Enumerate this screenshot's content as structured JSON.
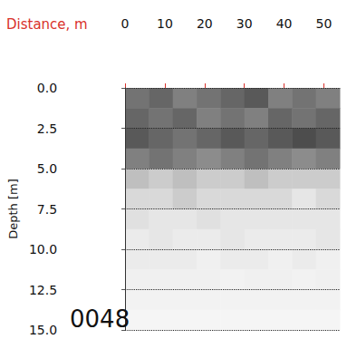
{
  "chart_data": {
    "type": "heatmap",
    "x_label": "Distance, m",
    "y_label": "Depth [m]",
    "annotation": "0048",
    "xlim": [
      0,
      54
    ],
    "xticks": [
      0,
      10,
      20,
      30,
      40,
      50
    ],
    "ylim": [
      0,
      15
    ],
    "yticks": [
      {
        "value": 0,
        "label": "0.0"
      },
      {
        "value": 2.5,
        "label": "2.5"
      },
      {
        "value": 5,
        "label": "5.0"
      },
      {
        "value": 7.5,
        "label": "7.5"
      },
      {
        "value": 10,
        "label": "10.0"
      },
      {
        "value": 12.5,
        "label": "12.5"
      },
      {
        "value": 15,
        "label": "15.0"
      }
    ],
    "grid": true,
    "x_bins": [
      0,
      6,
      12,
      18,
      24,
      30,
      36,
      42,
      48,
      54
    ],
    "y_bins": [
      0,
      1.25,
      2.5,
      3.75,
      5,
      6.25,
      7.5,
      8.75,
      10,
      11.25,
      12.5,
      13.75,
      15
    ],
    "zlim": [
      0,
      1
    ],
    "values": [
      [
        0.55,
        0.6,
        0.5,
        0.55,
        0.6,
        0.65,
        0.5,
        0.55,
        0.5
      ],
      [
        0.6,
        0.55,
        0.6,
        0.5,
        0.55,
        0.5,
        0.6,
        0.55,
        0.6
      ],
      [
        0.65,
        0.6,
        0.55,
        0.6,
        0.65,
        0.6,
        0.65,
        0.7,
        0.65
      ],
      [
        0.5,
        0.55,
        0.5,
        0.45,
        0.5,
        0.55,
        0.5,
        0.45,
        0.5
      ],
      [
        0.25,
        0.2,
        0.25,
        0.2,
        0.2,
        0.25,
        0.2,
        0.2,
        0.2
      ],
      [
        0.15,
        0.15,
        0.2,
        0.15,
        0.15,
        0.15,
        0.15,
        0.1,
        0.15
      ],
      [
        0.12,
        0.1,
        0.1,
        0.12,
        0.1,
        0.1,
        0.1,
        0.1,
        0.1
      ],
      [
        0.08,
        0.1,
        0.08,
        0.08,
        0.1,
        0.08,
        0.08,
        0.08,
        0.1
      ],
      [
        0.08,
        0.08,
        0.08,
        0.06,
        0.08,
        0.08,
        0.06,
        0.08,
        0.06
      ],
      [
        0.06,
        0.06,
        0.06,
        0.06,
        0.05,
        0.06,
        0.06,
        0.05,
        0.06
      ],
      [
        0.05,
        0.05,
        0.05,
        0.05,
        0.05,
        0.05,
        0.05,
        0.05,
        0.05
      ],
      [
        0.04,
        0.04,
        0.04,
        0.04,
        0.04,
        0.04,
        0.04,
        0.04,
        0.04
      ]
    ]
  }
}
